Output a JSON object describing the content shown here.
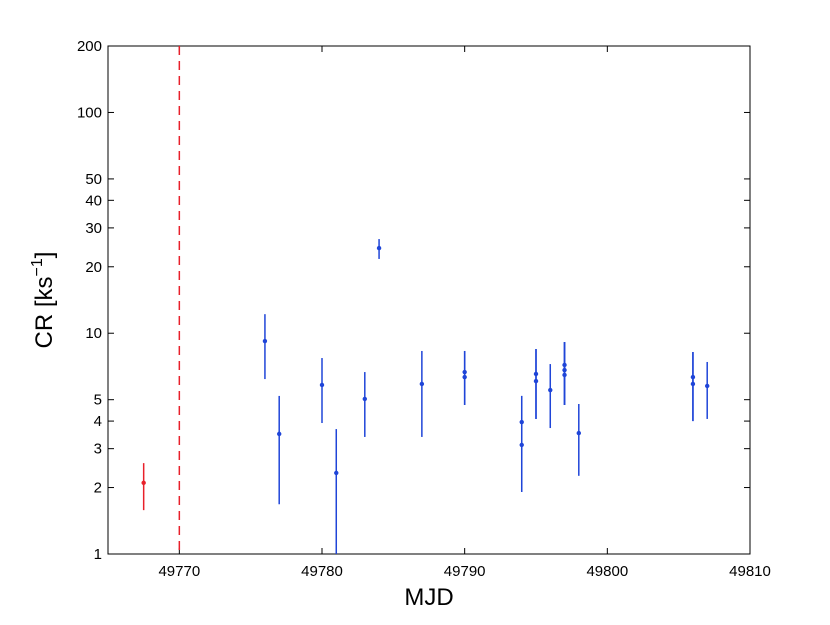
{
  "chart_data": {
    "type": "scatter",
    "xlabel": "MJD",
    "ylabel": [
      "CR [ks",
      "−1",
      "]"
    ],
    "xlim": [
      49765,
      49810
    ],
    "xticks": [
      49770,
      49780,
      49790,
      49800,
      49810
    ],
    "ylim": [
      1,
      200
    ],
    "yticks": [
      1,
      2,
      3,
      4,
      5,
      10,
      20,
      30,
      40,
      50,
      100,
      200
    ],
    "yscale": "log",
    "grid": false,
    "vline": {
      "value": 49770,
      "color": "#e8202a"
    },
    "series": [
      {
        "color": "#e8202a",
        "x": [
          49767.5
        ],
        "values": [
          2.1
        ],
        "low": [
          1.58
        ],
        "high": [
          2.58
        ]
      },
      {
        "color": "#1f45d8",
        "x": [
          49776,
          49777,
          49780,
          49781,
          49783,
          49784,
          49787,
          49790,
          49790,
          49794,
          49794,
          49795,
          49795,
          49796,
          49797,
          49797,
          49797,
          49798,
          49806,
          49806,
          49807
        ],
        "values": [
          9.22,
          3.5,
          5.83,
          2.33,
          5.04,
          24.3,
          5.89,
          6.67,
          6.33,
          3.96,
          3.12,
          6.54,
          6.07,
          5.53,
          7.18,
          6.81,
          6.47,
          3.53,
          6.33,
          5.89,
          5.77
        ],
        "low": [
          6.2,
          1.68,
          3.92,
          1.0,
          3.39,
          21.7,
          3.39,
          4.73,
          4.73,
          1.91,
          1.91,
          4.09,
          4.09,
          3.72,
          4.73,
          4.73,
          4.73,
          2.26,
          4.0,
          4.0,
          4.09
        ],
        "high": [
          12.2,
          5.2,
          7.72,
          3.68,
          6.67,
          26.7,
          8.31,
          8.31,
          8.31,
          5.2,
          5.2,
          8.48,
          8.48,
          7.25,
          9.12,
          9.12,
          9.12,
          4.78,
          8.22,
          8.22,
          7.41
        ]
      }
    ]
  }
}
